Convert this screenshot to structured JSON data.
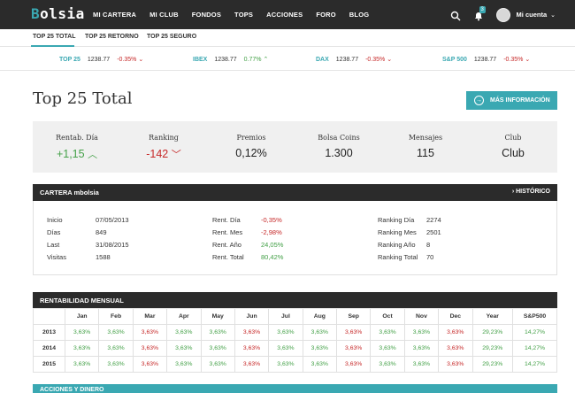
{
  "nav": {
    "logo_first": "B",
    "logo_rest": "olsia",
    "items": [
      "MI CARTERA",
      "MI CLUB",
      "FONDOS",
      "TOPS",
      "ACCIONES",
      "FORO",
      "BLOG"
    ],
    "notification_count": "3",
    "account_label": "Mi cuenta"
  },
  "subnav": {
    "items": [
      "TOP 25 TOTAL",
      "TOP 25 RETORNO",
      "TOP 25 SEGURO"
    ],
    "active_index": 0
  },
  "ticker": [
    {
      "name": "TOP 25",
      "value": "1238.77",
      "change": "-0.35%",
      "dir": "neg",
      "arrow": "⌄"
    },
    {
      "name": "IBEX",
      "value": "1238.77",
      "change": "0.77%",
      "dir": "pos",
      "arrow": "⌃"
    },
    {
      "name": "DAX",
      "value": "1238.77",
      "change": "-0.35%",
      "dir": "neg",
      "arrow": "⌄"
    },
    {
      "name": "S&P 500",
      "value": "1238.77",
      "change": "-0.35%",
      "dir": "neg",
      "arrow": "⌄"
    }
  ],
  "page": {
    "title": "Top 25 Total",
    "more_button": "MÁS INFORMACIÓN"
  },
  "stats": [
    {
      "label": "Rentab. Día",
      "value": "+1,15",
      "trend": "up"
    },
    {
      "label": "Ranking",
      "value": "-142",
      "trend": "down"
    },
    {
      "label": "Premios",
      "value": "0,12%",
      "trend": "none"
    },
    {
      "label": "Bolsa Coins",
      "value": "1.300",
      "trend": "none"
    },
    {
      "label": "Mensajes",
      "value": "115",
      "trend": "none"
    },
    {
      "label": "Club",
      "value": "Club",
      "trend": "none"
    }
  ],
  "cartera": {
    "title": "CARTERA mbolsia",
    "history_link": "HISTÓRICO",
    "col1": [
      {
        "k": "Inicio",
        "v": "07/05/2013"
      },
      {
        "k": "Días",
        "v": "849"
      },
      {
        "k": "Last",
        "v": "31/08/2015"
      },
      {
        "k": "Visitas",
        "v": "1588"
      }
    ],
    "col2": [
      {
        "k": "Rent. Día",
        "v": "-0,35%",
        "dir": "neg"
      },
      {
        "k": "Rent. Mes",
        "v": "-2,98%",
        "dir": "neg"
      },
      {
        "k": "Rent. Año",
        "v": "24,05%",
        "dir": "pos"
      },
      {
        "k": "Rent. Total",
        "v": "80,42%",
        "dir": "pos"
      }
    ],
    "col3": [
      {
        "k": "Ranking Día",
        "v": "2274"
      },
      {
        "k": "Ranking Mes",
        "v": "2501"
      },
      {
        "k": "Ranking Año",
        "v": "8"
      },
      {
        "k": "Ranking Total",
        "v": "70"
      }
    ]
  },
  "rentabilidad": {
    "title": "RENTABILIDAD MENSUAL",
    "headers": [
      "",
      "Jan",
      "Feb",
      "Mar",
      "Apr",
      "May",
      "Jun",
      "Jul",
      "Aug",
      "Sep",
      "Oct",
      "Nov",
      "Dec",
      "Year",
      "S&P500"
    ],
    "rows": [
      {
        "year": "2013",
        "cells": [
          [
            "3,63%",
            "pos"
          ],
          [
            "3,63%",
            "pos"
          ],
          [
            "3,63%",
            "neg"
          ],
          [
            "3,63%",
            "pos"
          ],
          [
            "3,63%",
            "pos"
          ],
          [
            "3,63%",
            "neg"
          ],
          [
            "3,63%",
            "pos"
          ],
          [
            "3,63%",
            "pos"
          ],
          [
            "3,63%",
            "neg"
          ],
          [
            "3,63%",
            "pos"
          ],
          [
            "3,63%",
            "pos"
          ],
          [
            "3,63%",
            "neg"
          ],
          [
            "29,23%",
            "pos"
          ],
          [
            "14,27%",
            "pos"
          ]
        ]
      },
      {
        "year": "2014",
        "cells": [
          [
            "3,63%",
            "pos"
          ],
          [
            "3,63%",
            "pos"
          ],
          [
            "3,63%",
            "neg"
          ],
          [
            "3,63%",
            "pos"
          ],
          [
            "3,63%",
            "pos"
          ],
          [
            "3,63%",
            "neg"
          ],
          [
            "3,63%",
            "pos"
          ],
          [
            "3,63%",
            "pos"
          ],
          [
            "3,63%",
            "neg"
          ],
          [
            "3,63%",
            "pos"
          ],
          [
            "3,63%",
            "pos"
          ],
          [
            "3,63%",
            "neg"
          ],
          [
            "29,23%",
            "pos"
          ],
          [
            "14,27%",
            "pos"
          ]
        ]
      },
      {
        "year": "2015",
        "cells": [
          [
            "3,63%",
            "pos"
          ],
          [
            "3,63%",
            "pos"
          ],
          [
            "3,63%",
            "neg"
          ],
          [
            "3,63%",
            "pos"
          ],
          [
            "3,63%",
            "pos"
          ],
          [
            "3,63%",
            "neg"
          ],
          [
            "3,63%",
            "pos"
          ],
          [
            "3,63%",
            "pos"
          ],
          [
            "3,63%",
            "neg"
          ],
          [
            "3,63%",
            "pos"
          ],
          [
            "3,63%",
            "pos"
          ],
          [
            "3,63%",
            "neg"
          ],
          [
            "29,23%",
            "pos"
          ],
          [
            "14,27%",
            "pos"
          ]
        ]
      }
    ]
  },
  "next_section": "ACCIONES Y DINERO",
  "colors": {
    "accent": "#3aa8b2",
    "dark": "#2b2b2b",
    "positive": "#43a047",
    "negative": "#c62828"
  }
}
